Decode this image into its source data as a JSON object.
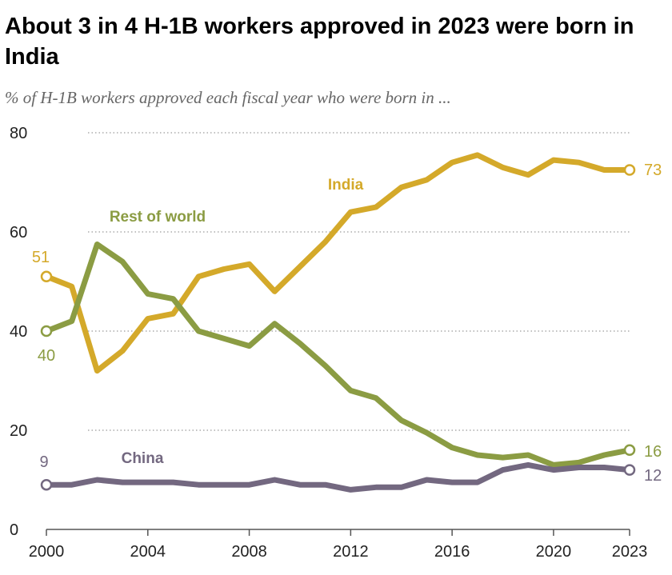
{
  "title": "About 3 in 4 H-1B workers approved in 2023 were born in India",
  "subtitle": "% of H-1B workers approved each fiscal year who were born in ...",
  "chart_data": {
    "type": "line",
    "x": [
      2000,
      2001,
      2002,
      2003,
      2004,
      2005,
      2006,
      2007,
      2008,
      2009,
      2010,
      2011,
      2012,
      2013,
      2014,
      2015,
      2016,
      2017,
      2018,
      2019,
      2020,
      2021,
      2022,
      2023
    ],
    "xticks": [
      2000,
      2004,
      2008,
      2012,
      2016,
      2020,
      2023
    ],
    "yticks": [
      0,
      20,
      40,
      60,
      80
    ],
    "xlim": [
      2000,
      2023
    ],
    "ylim": [
      0,
      80
    ],
    "grid": "horizontal dotted",
    "series": [
      {
        "name": "India",
        "color": "#d4a92a",
        "values": [
          51,
          49,
          32,
          36,
          42.5,
          43.5,
          51,
          52.5,
          53.5,
          48,
          53,
          58,
          64,
          65,
          69,
          70.5,
          74,
          75.5,
          73,
          71.5,
          74.5,
          74,
          72.5,
          72.5
        ],
        "start_label": "51",
        "end_label": "73"
      },
      {
        "name": "Rest of world",
        "color": "#8b9c43",
        "values": [
          40,
          42,
          57.5,
          54,
          47.5,
          46.5,
          40,
          38.5,
          37,
          41.5,
          37.5,
          33,
          28,
          26.5,
          22,
          19.5,
          16.5,
          15,
          14.5,
          15,
          13,
          13.5,
          15,
          16
        ],
        "start_label": "40",
        "end_label": "16"
      },
      {
        "name": "China",
        "color": "#736880",
        "values": [
          9,
          9,
          10,
          9.5,
          9.5,
          9.5,
          9,
          9,
          9,
          10,
          9,
          9,
          8,
          8.5,
          8.5,
          10,
          9.5,
          9.5,
          12,
          13,
          12,
          12.5,
          12.5,
          12
        ],
        "start_label": "9",
        "end_label": "12"
      }
    ]
  }
}
